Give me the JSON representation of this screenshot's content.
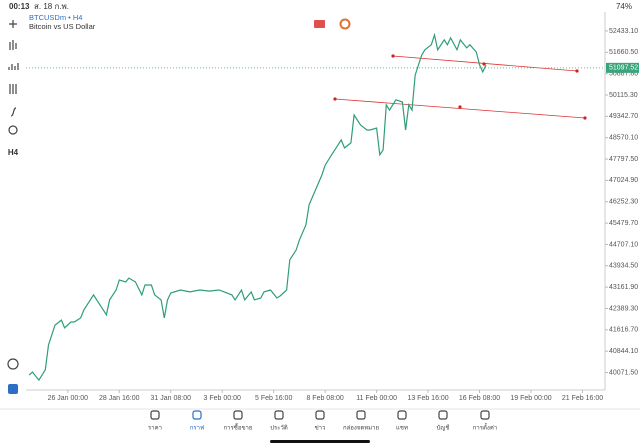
{
  "status_bar": {
    "time": "00:13",
    "date": "ส. 18 ก.พ.",
    "battery": "74%"
  },
  "toolbar": {
    "timeframe": "H4"
  },
  "chart_data": {
    "type": "line",
    "title": "BTCUSDm • H4",
    "subtitle": "Bitcoin vs US Dollar",
    "x": [
      1,
      2,
      4,
      6,
      7,
      9,
      11,
      12,
      14,
      15,
      17,
      18,
      20,
      21,
      23,
      25,
      26,
      28,
      29,
      31,
      32,
      34,
      36,
      37,
      39,
      40,
      42,
      43,
      44,
      45,
      48,
      51,
      54,
      57,
      60,
      64,
      65,
      67,
      68,
      70,
      71,
      73,
      74,
      76,
      78,
      79,
      81,
      82,
      84,
      85,
      87,
      88,
      90,
      92,
      93,
      95,
      96,
      98,
      99,
      101,
      102,
      104,
      106,
      107,
      109,
      110,
      111,
      112,
      113,
      115,
      117,
      118,
      119,
      120,
      121,
      123,
      124,
      126,
      127,
      128,
      130,
      131,
      132,
      134,
      135,
      137,
      138,
      140,
      141,
      142,
      143
    ],
    "series": [
      {
        "color": "#2e9e78",
        "values": [
          39980,
          40090,
          39800,
          40170,
          41070,
          41790,
          41970,
          41690,
          41900,
          41900,
          42050,
          42340,
          42700,
          42880,
          42520,
          42160,
          42700,
          43060,
          43420,
          43350,
          43490,
          43350,
          42880,
          43240,
          43240,
          42880,
          42700,
          42050,
          42700,
          42950,
          43060,
          42990,
          43060,
          43020,
          43060,
          42880,
          42700,
          43060,
          42700,
          42990,
          42700,
          42770,
          42990,
          43060,
          42770,
          42840,
          43060,
          44150,
          44510,
          44870,
          45410,
          46140,
          46680,
          47220,
          47580,
          47950,
          48130,
          48490,
          48200,
          48380,
          49390,
          49030,
          48850,
          48850,
          48920,
          47950,
          48130,
          49760,
          49570,
          49940,
          49860,
          48850,
          49760,
          49570,
          50840,
          51560,
          51750,
          51930,
          52290,
          51750,
          52110,
          51930,
          52180,
          51750,
          52110,
          51820,
          51930,
          51670,
          51200,
          50950,
          51200
        ]
      }
    ],
    "xlim": [
      0,
      180
    ],
    "ylim": [
      39440,
      53010
    ],
    "xticks": [
      {
        "value": 13,
        "label": "26 Jan 00:00"
      },
      {
        "value": 29,
        "label": "28 Jan 16:00"
      },
      {
        "value": 45,
        "label": "31 Jan 08:00"
      },
      {
        "value": 61,
        "label": "3 Feb 00:00"
      },
      {
        "value": 77,
        "label": "5 Feb 16:00"
      },
      {
        "value": 93,
        "label": "8 Feb 08:00"
      },
      {
        "value": 109,
        "label": "11 Feb 00:00"
      },
      {
        "value": 125,
        "label": "13 Feb 16:00"
      },
      {
        "value": 141,
        "label": "16 Feb 08:00"
      },
      {
        "value": 157,
        "label": "19 Feb 00:00"
      },
      {
        "value": 173,
        "label": "21 Feb 16:00"
      }
    ],
    "yticks": [
      {
        "value": 52433.1,
        "label": "52433.10"
      },
      {
        "value": 51660.5,
        "label": "51660.50"
      },
      {
        "value": 50887.8,
        "label": "50887.80"
      },
      {
        "value": 50115.3,
        "label": "50115.30"
      },
      {
        "value": 49342.7,
        "label": "49342.70"
      },
      {
        "value": 48570.1,
        "label": "48570.10"
      },
      {
        "value": 47797.5,
        "label": "47797.50"
      },
      {
        "value": 47024.9,
        "label": "47024.90"
      },
      {
        "value": 46252.3,
        "label": "46252.30"
      },
      {
        "value": 45479.7,
        "label": "45479.70"
      },
      {
        "value": 44707.1,
        "label": "44707.10"
      },
      {
        "value": 43934.5,
        "label": "43934.50"
      },
      {
        "value": 43161.9,
        "label": "43161.90"
      },
      {
        "value": 42389.3,
        "label": "42389.30"
      },
      {
        "value": 41616.7,
        "label": "41616.70"
      },
      {
        "value": 40844.1,
        "label": "40844.10"
      },
      {
        "value": 40071.5,
        "label": "40071.50"
      }
    ],
    "current_price": {
      "value": 51097.52,
      "label": "51097.52"
    },
    "grid": false
  },
  "nav": [
    "ราคา",
    "กราฟ",
    "การซื้อขาย",
    "ประวัติ",
    "ข่าว",
    "กล่องจดหมาย",
    "แชท",
    "บัญชี",
    "การตั้งค่า"
  ]
}
